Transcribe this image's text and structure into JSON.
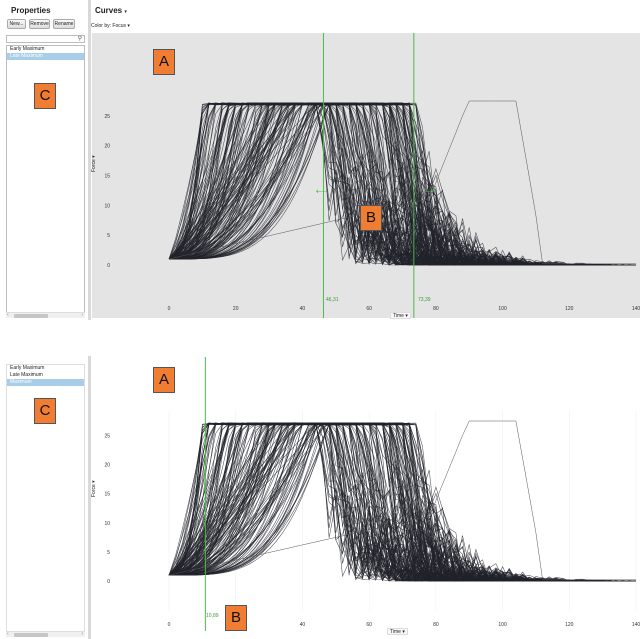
{
  "top": {
    "properties": {
      "title": "Properties",
      "buttons": [
        "New...",
        "Remove",
        "Rename"
      ],
      "items": [
        "Early Maximum",
        "Late Maximum"
      ],
      "selected": 1
    },
    "curves": {
      "title": "Curves",
      "title_arrow": "▾",
      "color_by": "Color by: Focus",
      "color_by_arrow": "▾"
    },
    "chart": {
      "ylabel": "Force",
      "xlabel": "Time",
      "yticks": [
        "0",
        "5",
        "10",
        "15",
        "20",
        "25"
      ],
      "xticks": [
        "0",
        "20",
        "40",
        "60",
        "80",
        "100",
        "120",
        "140"
      ],
      "marker1": "46,31",
      "marker2": "73,39"
    },
    "callouts": {
      "a": "A",
      "b": "B",
      "c": "C"
    }
  },
  "bottom": {
    "properties": {
      "items": [
        "Early Maximum",
        "Late Maximum",
        "Maximum"
      ],
      "selected": 2
    },
    "chart": {
      "ylabel": "Force",
      "xlabel": "Time",
      "yticks": [
        "0",
        "5",
        "10",
        "15",
        "20",
        "25"
      ],
      "xticks": [
        "0",
        "20",
        "40",
        "60",
        "80",
        "100",
        "120",
        "140"
      ],
      "marker1": "10,89"
    },
    "callouts": {
      "a": "A",
      "b": "B",
      "c": "C"
    }
  },
  "colors": {
    "curve": "#22232b",
    "marker": "#4cbb47",
    "plot_bg_top": "#e4e4e4",
    "plot_bg_bottom": "#ffffff",
    "selection": "#a8cde9",
    "callout": "#f07d32"
  },
  "icons": {
    "search": "magnifier-icon",
    "dropdown": "chevron-down-icon",
    "drag_arrow": "drag-arrow-icon",
    "scroll_left": "arrow-left-icon",
    "scroll_right": "arrow-right-icon"
  }
}
